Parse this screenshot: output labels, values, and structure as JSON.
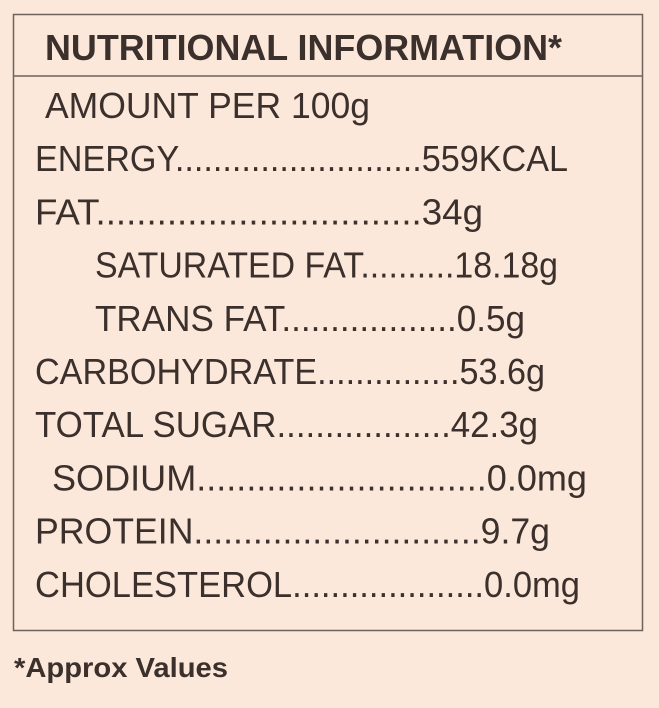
{
  "header": {
    "title": "NUTRITIONAL INFORMATION*"
  },
  "table": {
    "rows": [
      "AMOUNT PER 100g",
      "ENERGY..........................559KCAL",
      "FAT................................34g",
      "SATURATED FAT..........18.18g",
      "TRANS FAT..................0.5g",
      "CARBOHYDRATE...............53.6g",
      "TOTAL SUGAR..................42.3g",
      "SODIUM.............................0.0mg",
      "PROTEIN.............................9.7g",
      "CHOLESTEROL....................0.0mg"
    ]
  },
  "footer": {
    "note": "*Approx Values"
  }
}
